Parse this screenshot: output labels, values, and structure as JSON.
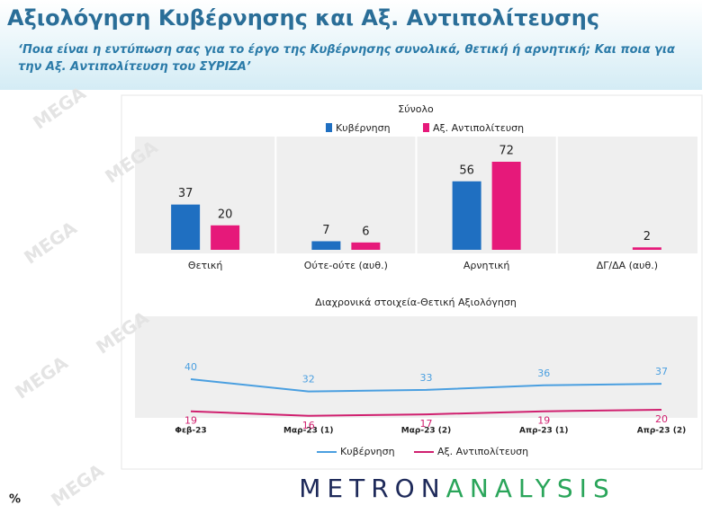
{
  "header": {
    "title": "Αξιολόγηση Κυβέρνησης και Αξ. Αντιπολίτευσης",
    "subtitle": "‘Ποια είναι η εντύπωση σας για το έργο της Κυβέρνησης συνολικά, θετική ή αρνητική; Και ποια για την Αξ. Αντιπολίτευση του ΣΥΡΙΖΑ’"
  },
  "watermark": "MEGA",
  "chart_data": [
    {
      "type": "bar",
      "title": "Σύνολο",
      "categories": [
        "Θετική",
        "Ούτε-ούτε (αυθ.)",
        "Αρνητική",
        "ΔΓ/ΔΑ (αυθ.)"
      ],
      "series": [
        {
          "name": "Κυβέρνηση",
          "color": "#1f6fc1",
          "values": [
            37,
            7,
            56,
            null
          ]
        },
        {
          "name": "Αξ. Αντιπολίτευση",
          "color": "#e6197a",
          "values": [
            20,
            6,
            72,
            2
          ]
        }
      ]
    },
    {
      "type": "line",
      "title": "Διαχρονικά στοιχεία-Θετική Αξιολόγηση",
      "categories": [
        "Φεβ-23",
        "Μαρ-23 (1)",
        "Μαρ-23 (2)",
        "Απρ-23 (1)",
        "Απρ-23 (2)"
      ],
      "series": [
        {
          "name": "Κυβέρνηση",
          "color": "#4a9fe0",
          "values": [
            40,
            32,
            33,
            36,
            37
          ]
        },
        {
          "name": "Αξ. Αντιπολίτευση",
          "color": "#d0206f",
          "values": [
            19,
            16,
            17,
            19,
            20
          ]
        }
      ]
    }
  ],
  "footer": {
    "logo_left": "METRON",
    "logo_right": "ANALYSIS",
    "unit": "%"
  }
}
